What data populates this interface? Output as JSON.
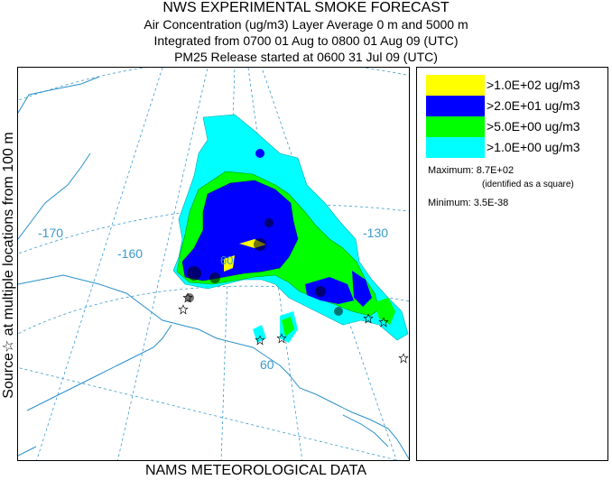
{
  "header": {
    "title": "NWS EXPERIMENTAL SMOKE FORECAST",
    "line1": "Air Concentration (ug/m3) Layer Average    0 m and  5000 m",
    "line2": "Integrated from 0700 01 Aug to 0800 01 Aug 09 (UTC)",
    "line3": "PM25 Release started at 0600 31 Jul 09 (UTC)"
  },
  "side_label": "Source☆ at multiple locations    from   100 m",
  "legend": {
    "items": [
      {
        "label": ">1.0E+02 ug/m3",
        "color": "#ffff00"
      },
      {
        "label": ">2.0E+01 ug/m3",
        "color": "#0000ff"
      },
      {
        "label": ">5.0E+00 ug/m3",
        "color": "#00ff00"
      },
      {
        "label": ">1.0E+00 ug/m3",
        "color": "#00ffff"
      }
    ],
    "maximum": "Maximum: 8.7E+02",
    "max_note": "(identified as a square)",
    "minimum": "Minimum: 3.5E-38"
  },
  "map": {
    "labels": [
      "-170",
      "-160",
      "-130",
      "60",
      "60"
    ],
    "coast_color": "#2a90c8",
    "grid_color": "#3a9ad0"
  },
  "footer": "NAMS METEOROLOGICAL DATA"
}
